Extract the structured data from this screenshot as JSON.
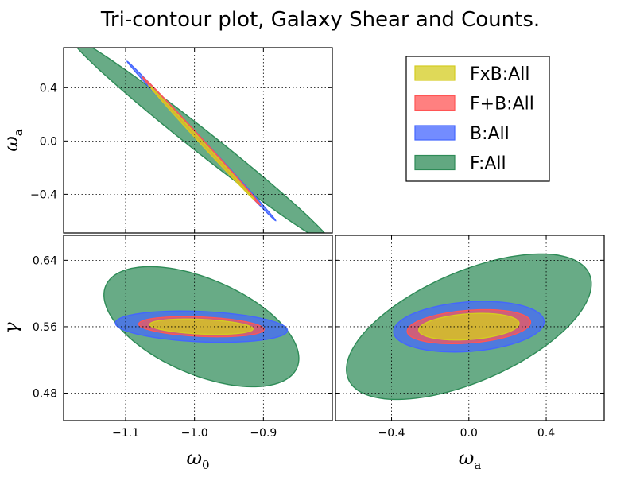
{
  "chart_data": {
    "type": "contour",
    "title": "Tri-contour plot, Galaxy Shear and Counts.",
    "legend": {
      "placement": "top-right",
      "entries": [
        {
          "label": "FxB:All",
          "color": "#d4cc20"
        },
        {
          "label": "F+B:All",
          "color": "#ff5555"
        },
        {
          "label": "B:All",
          "color": "#4466ff"
        },
        {
          "label": "F:All",
          "color": "#2e8b57"
        }
      ]
    },
    "panels": [
      {
        "id": "w0_wa",
        "xlabel": "",
        "ylabel": "ω_a",
        "ylabel_base": "ω",
        "ylabel_sub": "a",
        "xlim": [
          -1.19,
          -0.8
        ],
        "ylim": [
          -0.69,
          0.7
        ],
        "xticks": [
          -1.1,
          -1.0,
          -0.9
        ],
        "yticks": [
          -0.4,
          0.0,
          0.4
        ],
        "ytick_labels": [
          "−0.4",
          "0.0",
          "0.4"
        ],
        "show_xtick_labels": false,
        "ellipses": [
          {
            "series": "F:All",
            "cx": -0.99,
            "cy": 0.0,
            "axis_a": 0.24,
            "axis_b": 0.084,
            "angle_deg": -38.3
          },
          {
            "series": "B:All",
            "cx": -0.99,
            "cy": 0.0,
            "axis_a": 0.158,
            "axis_b": 0.016,
            "angle_deg": -47.0
          },
          {
            "series": "F+B:All",
            "cx": -0.99,
            "cy": 0.0,
            "axis_a": 0.126,
            "axis_b": 0.0155,
            "angle_deg": -47.4
          },
          {
            "series": "FxB:All",
            "cx": -0.99,
            "cy": -0.01,
            "axis_a": 0.113,
            "axis_b": 0.0117,
            "angle_deg": -47.3
          }
        ]
      },
      {
        "id": "w0_gamma",
        "xlabel": "ω_0",
        "ylabel": "γ",
        "xlabel_base": "ω",
        "xlabel_sub": "0",
        "xlim": [
          -1.19,
          -0.8
        ],
        "ylim": [
          0.447,
          0.67
        ],
        "xticks": [
          -1.1,
          -1.0,
          -0.9
        ],
        "xtick_labels": [
          "−1.1",
          "−1.0",
          "−0.9"
        ],
        "yticks": [
          0.48,
          0.56,
          0.64
        ],
        "ytick_labels": [
          "0.48",
          "0.56",
          "0.64"
        ],
        "show_xtick_labels": true,
        "ellipses": [
          {
            "series": "F:All",
            "cx": -0.99,
            "cy": 0.56,
            "axis_a": 0.151,
            "axis_b": 0.0575,
            "angle_deg": -23.2
          },
          {
            "series": "B:All",
            "cx": -0.99,
            "cy": 0.56,
            "axis_a": 0.125,
            "axis_b": 0.0183,
            "angle_deg": -2.5
          },
          {
            "series": "F+B:All",
            "cx": -0.99,
            "cy": 0.56,
            "axis_a": 0.091,
            "axis_b": 0.0117,
            "angle_deg": -2.5
          },
          {
            "series": "FxB:All",
            "cx": -0.99,
            "cy": 0.56,
            "axis_a": 0.075,
            "axis_b": 0.0088,
            "angle_deg": -2.5
          }
        ]
      },
      {
        "id": "wa_gamma",
        "xlabel": "ω_a",
        "ylabel": "",
        "xlabel_base": "ω",
        "xlabel_sub": "a",
        "xlim": [
          -0.69,
          0.7
        ],
        "ylim": [
          0.447,
          0.67
        ],
        "xticks": [
          -0.4,
          0.0,
          0.4
        ],
        "xtick_labels": [
          "−0.4",
          "0.0",
          "0.4"
        ],
        "yticks": [
          0.48,
          0.56,
          0.64
        ],
        "show_xtick_labels": true,
        "ellipses": [
          {
            "series": "F:All",
            "cx": 0.0,
            "cy": 0.56,
            "axis_a": 0.68,
            "axis_b": 0.066,
            "angle_deg": 23.6
          },
          {
            "series": "B:All",
            "cx": 0.0,
            "cy": 0.56,
            "axis_a": 0.39,
            "axis_b": 0.0298,
            "angle_deg": 4.2
          },
          {
            "series": "F+B:All",
            "cx": 0.0,
            "cy": 0.56,
            "axis_a": 0.32,
            "axis_b": 0.0197,
            "angle_deg": 4.5
          },
          {
            "series": "FxB:All",
            "cx": 0.0,
            "cy": 0.56,
            "axis_a": 0.26,
            "axis_b": 0.0155,
            "angle_deg": 4.0
          }
        ]
      }
    ]
  }
}
